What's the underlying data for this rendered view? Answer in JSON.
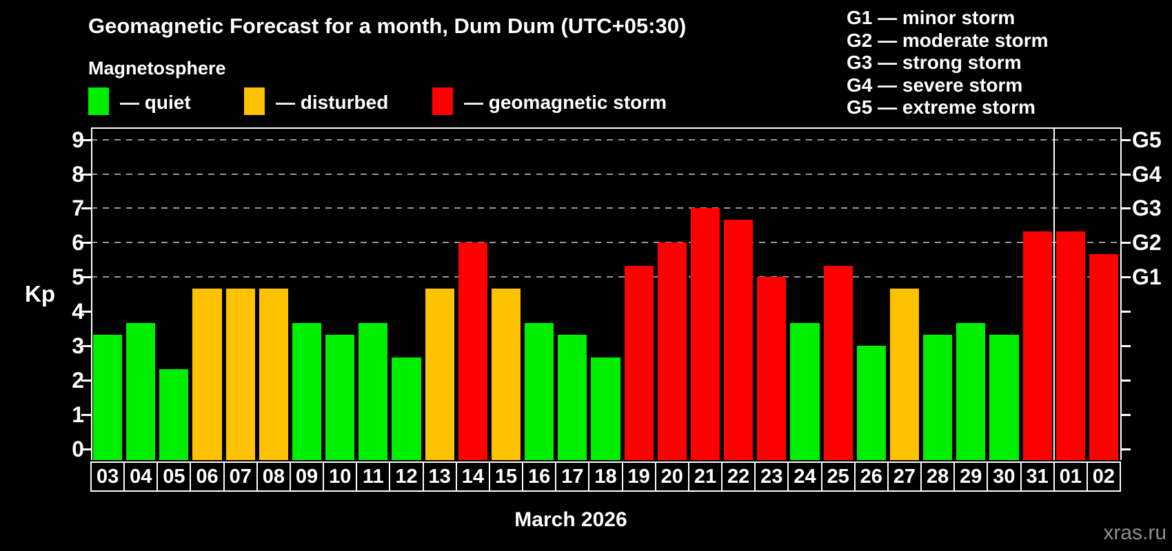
{
  "header": {
    "title": "Geomagnetic Forecast for a month, Dum Dum (UTC+05:30)",
    "subtitle": "Magnetosphere"
  },
  "legend": {
    "quiet": "— quiet",
    "disturbed": "— disturbed",
    "storm": "— geomagnetic storm"
  },
  "g_scale_legend": [
    "G1 — minor storm",
    "G2 — moderate storm",
    "G3 — strong storm",
    "G4 — severe storm",
    "G5 — extreme storm"
  ],
  "colors": {
    "quiet": "#00ee00",
    "disturbed": "#ffc200",
    "storm": "#ff0000",
    "background": "#000000",
    "text": "#ffffff",
    "grid": "#9a9a9a",
    "watermark": "#8f8f8f"
  },
  "axis": {
    "y_label": "Kp",
    "y_ticks": [
      0,
      1,
      2,
      3,
      4,
      5,
      6,
      7,
      8,
      9
    ],
    "right_axis": [
      {
        "label": "G1",
        "kp": 5
      },
      {
        "label": "G2",
        "kp": 6
      },
      {
        "label": "G3",
        "kp": 7
      },
      {
        "label": "G4",
        "kp": 8
      },
      {
        "label": "G5",
        "kp": 9
      }
    ],
    "x_label": "March 2026"
  },
  "watermark": "xras.ru",
  "chart_data": {
    "type": "bar",
    "title": "Geomagnetic Forecast for a month, Dum Dum (UTC+05:30)",
    "ylabel": "Kp",
    "xlabel": "March 2026",
    "ylim": [
      0,
      9
    ],
    "grid_kp_levels": [
      5,
      6,
      7,
      8,
      9
    ],
    "legend_position": "top",
    "month_boundary_after_category": "31",
    "categories": [
      "03",
      "04",
      "05",
      "06",
      "07",
      "08",
      "09",
      "10",
      "11",
      "12",
      "13",
      "14",
      "15",
      "16",
      "17",
      "18",
      "19",
      "20",
      "21",
      "22",
      "23",
      "24",
      "25",
      "26",
      "27",
      "28",
      "29",
      "30",
      "31",
      "01",
      "02"
    ],
    "values": [
      3.33,
      3.67,
      2.33,
      4.67,
      4.67,
      4.67,
      3.67,
      3.33,
      3.67,
      2.67,
      4.67,
      6.0,
      4.67,
      3.67,
      3.33,
      2.67,
      5.33,
      6.0,
      7.0,
      6.67,
      5.0,
      3.67,
      5.33,
      3.0,
      4.67,
      3.33,
      3.67,
      3.33,
      6.33,
      6.33,
      5.67
    ],
    "status": [
      "quiet",
      "quiet",
      "quiet",
      "disturbed",
      "disturbed",
      "disturbed",
      "quiet",
      "quiet",
      "quiet",
      "quiet",
      "disturbed",
      "storm",
      "disturbed",
      "quiet",
      "quiet",
      "quiet",
      "storm",
      "storm",
      "storm",
      "storm",
      "storm",
      "quiet",
      "storm",
      "quiet",
      "disturbed",
      "quiet",
      "quiet",
      "quiet",
      "storm",
      "storm",
      "storm"
    ]
  }
}
